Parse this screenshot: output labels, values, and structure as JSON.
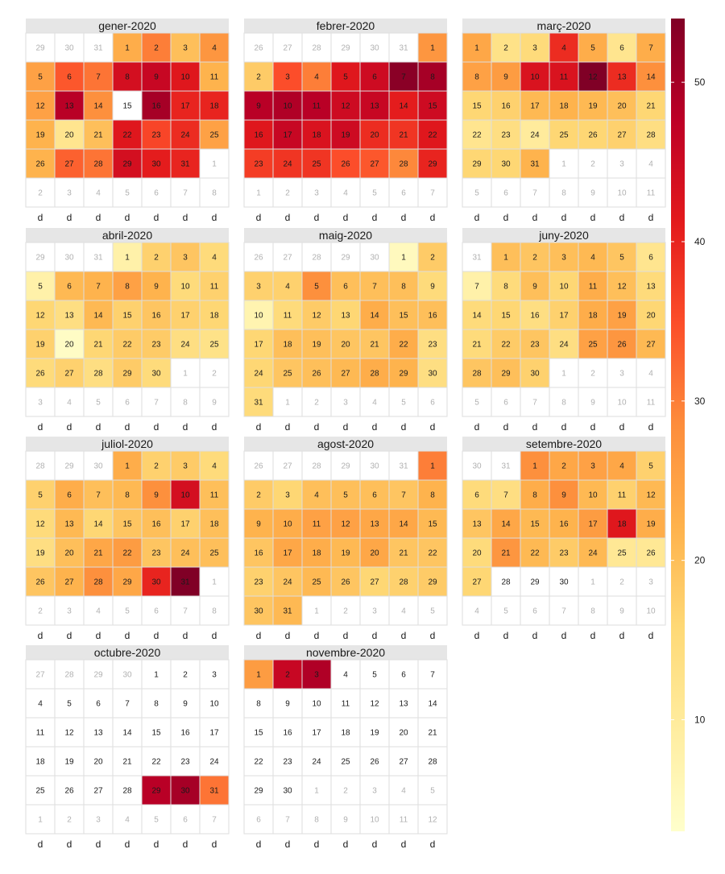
{
  "chart_data": {
    "type": "heatmap",
    "year": 2020,
    "weekday_label": "d",
    "weekday_labels": [
      "d",
      "d",
      "d",
      "d",
      "d",
      "d",
      "d"
    ],
    "colors": [
      "#ffffcc",
      "#ffeda0",
      "#fed976",
      "#feb24c",
      "#fd8d3c",
      "#fc4e2a",
      "#e31a1c",
      "#bd0026",
      "#800026"
    ],
    "empty_color": "#ffffff",
    "grid_color": "#dddddd",
    "header_color": "#e6e6e6",
    "legend": {
      "min": 3,
      "max": 54,
      "ticks": [
        10,
        20,
        30,
        40,
        50
      ],
      "placement": "right"
    },
    "months": [
      {
        "name": "gener-2020",
        "days": 31,
        "start_weekday": 3,
        "prev_days": 31,
        "values": [
          23,
          30,
          20,
          27,
          25,
          34,
          31,
          44,
          46,
          42,
          22,
          25,
          48,
          28,
          null,
          50,
          40,
          40,
          22,
          12,
          20,
          42,
          36,
          39,
          25,
          22,
          33,
          31,
          44,
          41,
          40
        ]
      },
      {
        "name": "febrer-2020",
        "days": 29,
        "start_weekday": 6,
        "prev_days": 31,
        "values": [
          27,
          18,
          35,
          30,
          42,
          45,
          53,
          50,
          48,
          49,
          48,
          45,
          46,
          41,
          45,
          42,
          46,
          43,
          45,
          39,
          38,
          42,
          37,
          38,
          38,
          35,
          34,
          29,
          40
        ]
      },
      {
        "name": "març-2020",
        "days": 31,
        "start_weekday": 0,
        "prev_days": 29,
        "values": [
          24,
          13,
          15,
          39,
          23,
          12,
          23,
          25,
          26,
          43,
          43,
          54,
          39,
          28,
          16,
          17,
          21,
          22,
          21,
          20,
          16,
          12,
          14,
          10,
          16,
          16,
          17,
          14,
          16,
          16,
          22
        ]
      },
      {
        "name": "abril-2020",
        "days": 30,
        "start_weekday": 3,
        "prev_days": 31,
        "values": [
          8,
          17,
          19,
          15,
          8,
          21,
          22,
          25,
          22,
          15,
          17,
          16,
          14,
          21,
          17,
          19,
          17,
          16,
          17,
          4,
          16,
          18,
          18,
          14,
          13,
          15,
          17,
          14,
          18,
          15
        ]
      },
      {
        "name": "maig-2020",
        "days": 31,
        "start_weekday": 5,
        "prev_days": 30,
        "values": [
          5,
          18,
          17,
          17,
          28,
          20,
          20,
          20,
          15,
          7,
          15,
          18,
          16,
          23,
          20,
          20,
          16,
          20,
          20,
          19,
          19,
          23,
          14,
          16,
          19,
          20,
          21,
          23,
          22,
          14,
          15
        ]
      },
      {
        "name": "juny-2020",
        "days": 30,
        "start_weekday": 1,
        "prev_days": 31,
        "values": [
          20,
          19,
          20,
          21,
          19,
          12,
          8,
          15,
          20,
          16,
          23,
          20,
          15,
          15,
          16,
          14,
          17,
          23,
          25,
          16,
          15,
          18,
          19,
          14,
          25,
          27,
          21,
          19,
          20,
          17
        ]
      },
      {
        "name": "juliol-2020",
        "days": 31,
        "start_weekday": 3,
        "prev_days": 30,
        "values": [
          23,
          17,
          18,
          15,
          17,
          23,
          20,
          21,
          28,
          44,
          20,
          15,
          21,
          16,
          19,
          20,
          17,
          20,
          14,
          20,
          24,
          26,
          19,
          20,
          20,
          19,
          22,
          28,
          24,
          40,
          54
        ]
      },
      {
        "name": "agost-2020",
        "days": 31,
        "start_weekday": 6,
        "prev_days": 31,
        "values": [
          30,
          18,
          16,
          20,
          20,
          20,
          19,
          22,
          22,
          23,
          25,
          25,
          24,
          24,
          21,
          19,
          24,
          23,
          21,
          24,
          19,
          19,
          17,
          19,
          21,
          19,
          16,
          17,
          18,
          19,
          21
        ]
      },
      {
        "name": "setembre-2020",
        "days": 30,
        "start_weekday": 2,
        "prev_days": 31,
        "values": [
          28,
          24,
          25,
          24,
          17,
          15,
          14,
          23,
          28,
          21,
          17,
          21,
          19,
          24,
          21,
          22,
          26,
          42,
          23,
          15,
          27,
          21,
          18,
          21,
          11,
          11,
          16,
          null,
          null,
          null
        ]
      },
      {
        "name": "octubre-2020",
        "days": 31,
        "start_weekday": 4,
        "prev_days": 30,
        "values": [
          null,
          null,
          null,
          null,
          null,
          null,
          null,
          null,
          null,
          null,
          null,
          null,
          null,
          null,
          null,
          null,
          null,
          null,
          null,
          null,
          null,
          null,
          null,
          null,
          null,
          null,
          null,
          null,
          48,
          50,
          31
        ]
      },
      {
        "name": "novembre-2020",
        "days": 30,
        "start_weekday": 0,
        "prev_days": 31,
        "values": [
          26,
          46,
          49,
          null,
          null,
          null,
          null,
          null,
          null,
          null,
          null,
          null,
          null,
          null,
          null,
          null,
          null,
          null,
          null,
          null,
          null,
          null,
          null,
          null,
          null,
          null,
          null,
          null,
          null,
          null
        ]
      }
    ]
  }
}
